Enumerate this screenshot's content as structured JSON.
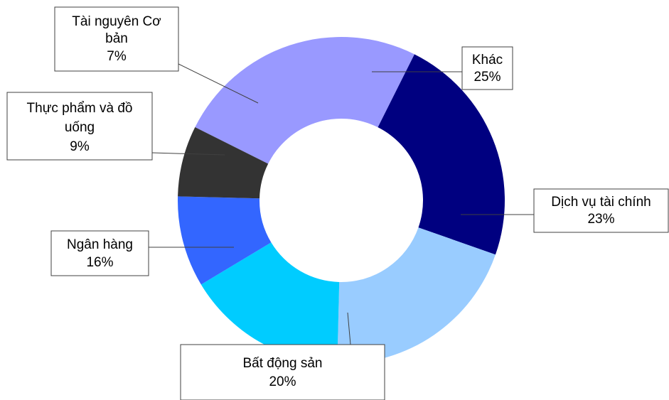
{
  "chart_data": {
    "type": "pie",
    "variant": "donut",
    "slices": [
      {
        "label": "Khác",
        "value": 25,
        "display": "25%",
        "color": "#9999ff"
      },
      {
        "label": "Dịch vụ tài chính",
        "value": 23,
        "display": "23%",
        "color": "#000080"
      },
      {
        "label": "Bất động sản",
        "value": 20,
        "display": "20%",
        "color": "#99ccff"
      },
      {
        "label": "Ngân hàng",
        "value": 16,
        "display": "16%",
        "color": "#00ccff"
      },
      {
        "label": "Thực phẩm và đồ uống",
        "value": 9,
        "display": "9%",
        "color": "#3366ff"
      },
      {
        "label": "Tài nguyên Cơ bản",
        "value": 7,
        "display": "7%",
        "color": "#333333"
      }
    ],
    "legend": "none",
    "labels": "callouts"
  }
}
